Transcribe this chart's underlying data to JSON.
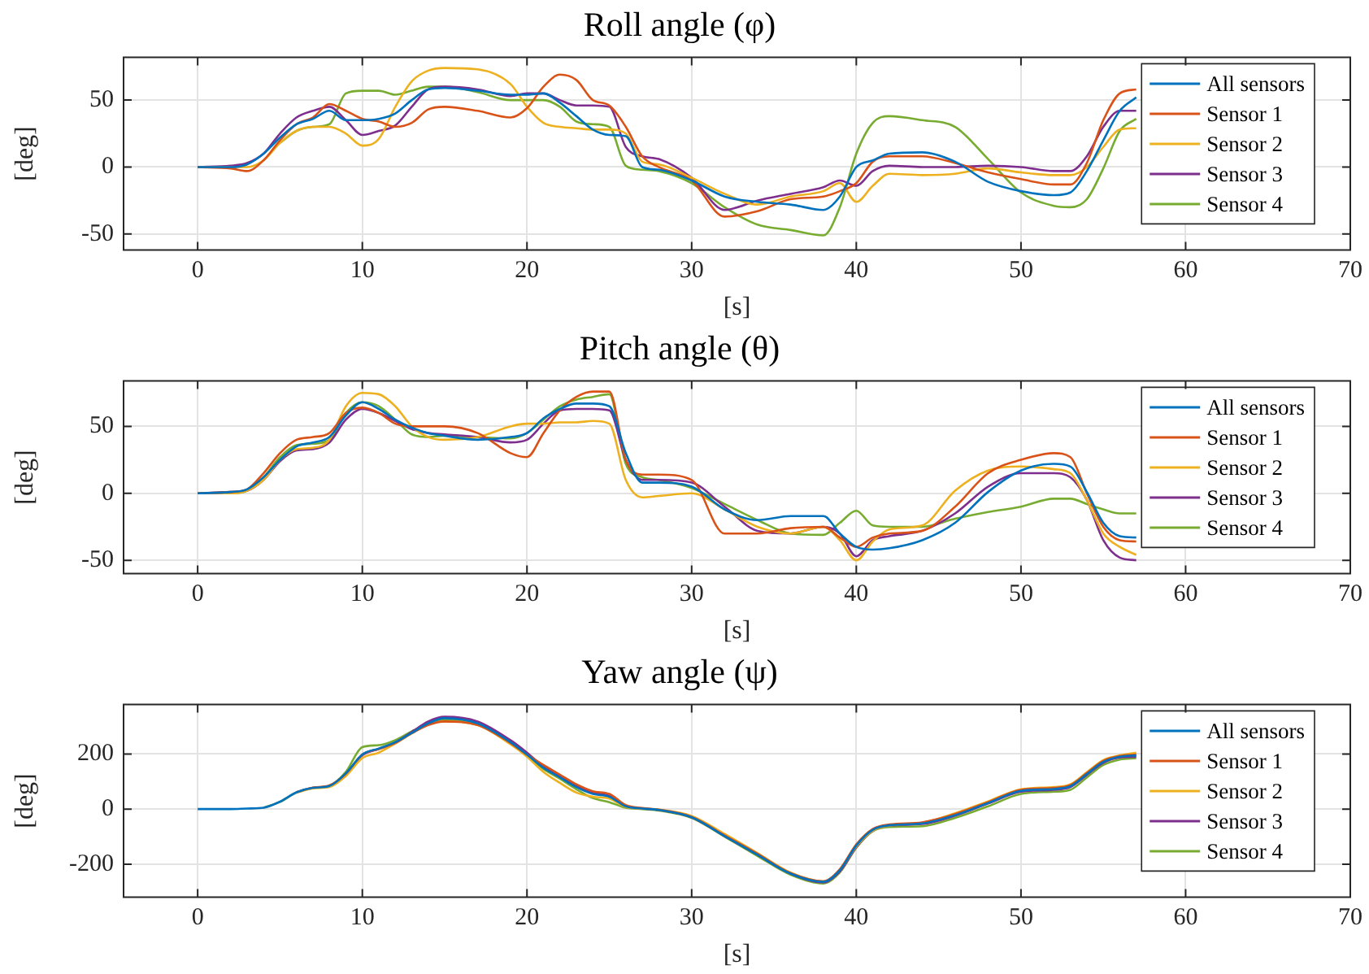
{
  "chart_data": [
    {
      "type": "line",
      "title": "Roll angle (φ)",
      "xlabel": "[s]",
      "ylabel": "[deg]",
      "xlim": [
        -4.5,
        70
      ],
      "xticks": [
        0,
        10,
        20,
        30,
        40,
        50,
        60,
        70
      ],
      "ylim": [
        -62,
        82
      ],
      "yticks": [
        -50,
        0,
        50
      ],
      "grid": true,
      "legend": "top right",
      "x": [
        0,
        2,
        3,
        4,
        5,
        6,
        7,
        8,
        9,
        10,
        11,
        12,
        13,
        14,
        15,
        17,
        19,
        20,
        21,
        22,
        23,
        24,
        25,
        26,
        27,
        28,
        30,
        32,
        34,
        36,
        38,
        39,
        40,
        41,
        42,
        44,
        46,
        48,
        50,
        52,
        53,
        54,
        55,
        56,
        57
      ],
      "series": [
        {
          "name": "All sensors",
          "color": "#0072bd",
          "values": [
            0,
            0,
            2,
            10,
            22,
            32,
            36,
            42,
            35,
            35,
            36,
            40,
            50,
            58,
            59,
            57,
            54,
            54,
            55,
            48,
            38,
            28,
            24,
            23,
            0,
            -2,
            -10,
            -22,
            -26,
            -28,
            -32,
            -22,
            0,
            5,
            10,
            11,
            4,
            -11,
            -18,
            -21,
            -19,
            -3,
            20,
            42,
            52
          ]
        },
        {
          "name": "Sensor 1",
          "color": "#d95319",
          "values": [
            0,
            -1,
            -3,
            5,
            20,
            32,
            37,
            47,
            42,
            36,
            34,
            30,
            33,
            43,
            45,
            42,
            37,
            44,
            60,
            69,
            65,
            50,
            46,
            30,
            8,
            0,
            -10,
            -37,
            -33,
            -24,
            -22,
            -18,
            -12,
            4,
            8,
            8,
            3,
            -4,
            -9,
            -13,
            -13,
            3,
            35,
            55,
            58
          ]
        },
        {
          "name": "Sensor 2",
          "color": "#edb120",
          "values": [
            0,
            0,
            0,
            5,
            18,
            27,
            30,
            30,
            25,
            16,
            21,
            45,
            64,
            72,
            74,
            73,
            62,
            45,
            33,
            30,
            29,
            28,
            28,
            25,
            4,
            2,
            -8,
            -20,
            -28,
            -22,
            -18,
            -12,
            -26,
            -14,
            -5,
            -6,
            -5,
            -1,
            -4,
            -6,
            -6,
            0,
            15,
            28,
            29
          ]
        },
        {
          "name": "Sensor 3",
          "color": "#7e2f8e",
          "values": [
            0,
            1,
            3,
            10,
            25,
            37,
            42,
            45,
            35,
            24,
            27,
            31,
            45,
            58,
            60,
            58,
            53,
            55,
            55,
            50,
            46,
            46,
            45,
            15,
            8,
            6,
            -8,
            -32,
            -25,
            -20,
            -15,
            -10,
            -14,
            -3,
            1,
            0,
            0,
            1,
            0,
            -3,
            -3,
            8,
            30,
            42,
            42
          ]
        },
        {
          "name": "Sensor 4",
          "color": "#77ac30",
          "values": [
            null,
            null,
            null,
            null,
            18,
            27,
            30,
            32,
            55,
            57,
            57,
            54,
            57,
            60,
            60,
            56,
            50,
            50,
            50,
            45,
            34,
            32,
            30,
            1,
            -2,
            -3,
            -12,
            -30,
            -43,
            -47,
            -51,
            -30,
            10,
            33,
            38,
            35,
            30,
            6,
            -19,
            -29,
            -30,
            -24,
            -1,
            27,
            36
          ]
        }
      ]
    },
    {
      "type": "line",
      "title": "Pitch angle (θ)",
      "xlabel": "[s]",
      "ylabel": "[deg]",
      "xlim": [
        -4.5,
        70
      ],
      "xticks": [
        0,
        10,
        20,
        30,
        40,
        50,
        60,
        70
      ],
      "ylim": [
        -60,
        84
      ],
      "yticks": [
        -50,
        0,
        50
      ],
      "grid": true,
      "legend": "top right",
      "x": [
        0,
        2,
        3,
        4,
        5,
        6,
        7,
        8,
        9,
        10,
        11,
        12,
        13,
        14,
        15,
        17,
        19,
        20,
        21,
        22,
        23,
        24,
        25,
        26,
        27,
        28,
        30,
        32,
        34,
        36,
        38,
        39,
        40,
        41,
        42,
        44,
        46,
        48,
        50,
        52,
        53,
        54,
        55,
        56,
        57
      ],
      "series": [
        {
          "name": "All sensors",
          "color": "#0072bd",
          "values": [
            0,
            1,
            3,
            12,
            25,
            35,
            38,
            42,
            58,
            68,
            63,
            55,
            49,
            45,
            43,
            40,
            42,
            45,
            56,
            63,
            67,
            67,
            65,
            30,
            8,
            8,
            5,
            -12,
            -20,
            -17,
            -17,
            -30,
            -40,
            -42,
            -41,
            -35,
            -22,
            1,
            17,
            22,
            20,
            1,
            -22,
            -32,
            -33
          ]
        },
        {
          "name": "Sensor 1",
          "color": "#d95319",
          "values": [
            0,
            1,
            3,
            15,
            30,
            40,
            42,
            45,
            60,
            64,
            60,
            52,
            50,
            50,
            50,
            45,
            30,
            27,
            45,
            62,
            72,
            76,
            76,
            25,
            14,
            14,
            10,
            -30,
            -30,
            -26,
            -25,
            -33,
            -40,
            -33,
            -30,
            -28,
            -10,
            15,
            25,
            30,
            27,
            0,
            -25,
            -35,
            -36
          ]
        },
        {
          "name": "Sensor 2",
          "color": "#edb120",
          "values": [
            0,
            0,
            2,
            10,
            25,
            33,
            34,
            40,
            65,
            75,
            74,
            65,
            50,
            42,
            40,
            42,
            50,
            52,
            52,
            53,
            53,
            54,
            52,
            10,
            -3,
            -2,
            0,
            -12,
            -25,
            -30,
            -25,
            -35,
            -50,
            -36,
            -27,
            -24,
            2,
            17,
            20,
            18,
            15,
            -5,
            -30,
            -40,
            -46
          ]
        },
        {
          "name": "Sensor 3",
          "color": "#7e2f8e",
          "values": [
            0,
            1,
            2,
            10,
            24,
            32,
            33,
            38,
            55,
            63,
            60,
            54,
            48,
            45,
            44,
            42,
            38,
            40,
            52,
            62,
            63,
            63,
            62,
            25,
            10,
            10,
            8,
            -10,
            -28,
            -30,
            -25,
            -30,
            -47,
            -35,
            -32,
            -28,
            -15,
            5,
            15,
            15,
            12,
            -5,
            -35,
            -48,
            -50
          ]
        },
        {
          "name": "Sensor 4",
          "color": "#77ac30",
          "values": [
            0,
            0,
            2,
            12,
            27,
            36,
            37,
            40,
            60,
            68,
            65,
            55,
            44,
            42,
            43,
            42,
            41,
            45,
            55,
            65,
            70,
            72,
            74,
            22,
            12,
            10,
            4,
            -8,
            -20,
            -30,
            -31,
            -22,
            -13,
            -24,
            -25,
            -25,
            -19,
            -14,
            -10,
            -4,
            -4,
            -8,
            -12,
            -15,
            -15
          ]
        }
      ]
    },
    {
      "type": "line",
      "title": "Yaw angle (ψ)",
      "xlabel": "[s]",
      "ylabel": "[deg]",
      "xlim": [
        -4.5,
        70
      ],
      "xticks": [
        0,
        10,
        20,
        30,
        40,
        50,
        60,
        70
      ],
      "ylim": [
        -320,
        380
      ],
      "yticks": [
        -200,
        0,
        200
      ],
      "grid": true,
      "legend": "top right",
      "x": [
        0,
        2,
        3,
        4,
        5,
        6,
        7,
        8,
        9,
        10,
        11,
        12,
        13,
        14,
        15,
        17,
        19,
        20,
        21,
        22,
        23,
        24,
        25,
        26,
        27,
        28,
        30,
        32,
        34,
        36,
        38,
        39,
        40,
        41,
        42,
        44,
        46,
        48,
        50,
        52,
        53,
        54,
        55,
        56,
        57
      ],
      "series": [
        {
          "name": "All sensors",
          "color": "#0072bd",
          "values": [
            0,
            0,
            2,
            5,
            27,
            61,
            77,
            84,
            130,
            198,
            220,
            243,
            277,
            311,
            330,
            311,
            243,
            198,
            150,
            115,
            80,
            55,
            45,
            10,
            2,
            -3,
            -30,
            -98,
            -166,
            -234,
            -264,
            -222,
            -132,
            -75,
            -59,
            -52,
            -22,
            22,
            66,
            73,
            83,
            127,
            171,
            190,
            195
          ]
        },
        {
          "name": "Sensor 1",
          "color": "#d95319",
          "values": [
            null,
            null,
            null,
            null,
            null,
            62,
            78,
            86,
            128,
            198,
            218,
            240,
            275,
            305,
            318,
            305,
            240,
            198,
            160,
            125,
            90,
            65,
            55,
            15,
            4,
            -2,
            -28,
            -95,
            -162,
            -232,
            -262,
            -218,
            -128,
            -72,
            -56,
            -48,
            -18,
            25,
            70,
            77,
            87,
            131,
            175,
            193,
            198
          ]
        },
        {
          "name": "Sensor 2",
          "color": "#edb120",
          "values": [
            null,
            null,
            null,
            null,
            null,
            60,
            75,
            80,
            120,
            185,
            205,
            238,
            275,
            308,
            318,
            305,
            235,
            190,
            135,
            95,
            60,
            45,
            38,
            8,
            2,
            -2,
            -25,
            -90,
            -160,
            -230,
            -262,
            -220,
            -135,
            -78,
            -60,
            -50,
            -15,
            28,
            72,
            80,
            90,
            134,
            178,
            195,
            205
          ]
        },
        {
          "name": "Sensor 3",
          "color": "#7e2f8e",
          "values": [
            null,
            null,
            null,
            null,
            null,
            61,
            77,
            83,
            125,
            195,
            218,
            242,
            280,
            318,
            335,
            318,
            250,
            205,
            155,
            120,
            85,
            60,
            48,
            10,
            2,
            -3,
            -30,
            -98,
            -166,
            -234,
            -266,
            -226,
            -138,
            -78,
            -60,
            -54,
            -24,
            20,
            63,
            70,
            80,
            124,
            168,
            187,
            190
          ]
        },
        {
          "name": "Sensor 4",
          "color": "#77ac30",
          "values": [
            null,
            null,
            null,
            5,
            26,
            60,
            76,
            84,
            135,
            225,
            232,
            250,
            282,
            310,
            325,
            308,
            240,
            195,
            145,
            110,
            72,
            40,
            25,
            5,
            0,
            -5,
            -32,
            -100,
            -170,
            -238,
            -270,
            -230,
            -140,
            -80,
            -65,
            -62,
            -32,
            10,
            55,
            63,
            70,
            115,
            160,
            180,
            185
          ]
        }
      ]
    }
  ]
}
